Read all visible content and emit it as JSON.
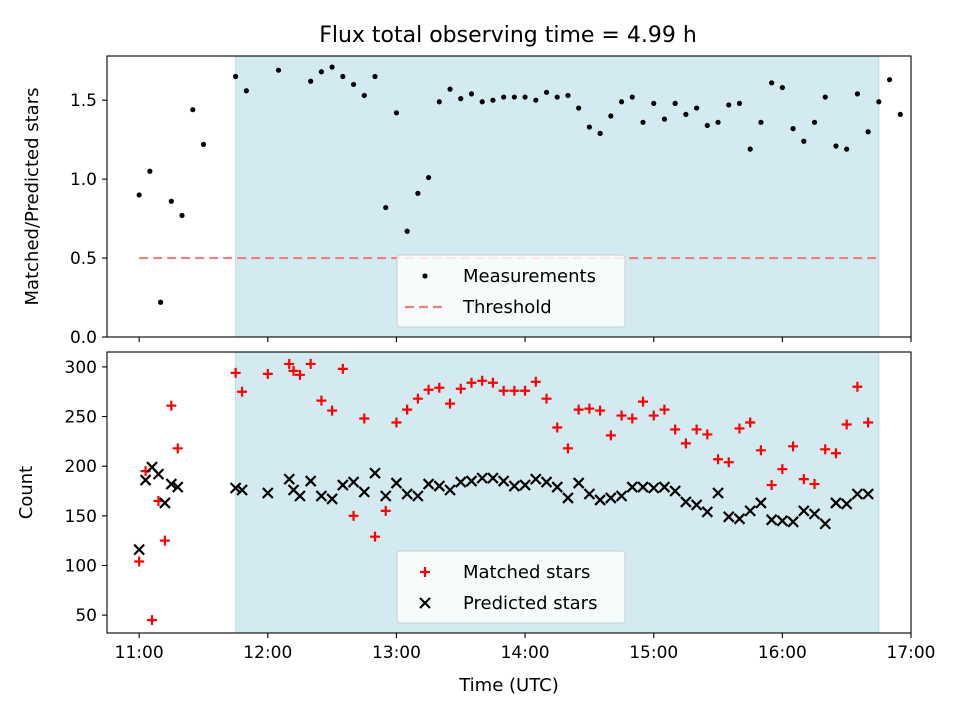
{
  "chart_data": [
    {
      "type": "scatter",
      "title": "Flux total observing time = 4.99 h",
      "xlabel": "",
      "ylabel": "Matched/Predicted stars",
      "xlim": [
        "10:45",
        "17:00"
      ],
      "ylim": [
        0,
        1.78
      ],
      "x_ticks": [
        "11:00",
        "12:00",
        "13:00",
        "14:00",
        "15:00",
        "16:00",
        "17:00"
      ],
      "x_tick_labels_shown": false,
      "y_ticks": [
        0.0,
        0.5,
        1.0,
        1.5
      ],
      "y_tick_labels": [
        "0.0",
        "0.5",
        "1.0",
        "1.5"
      ],
      "shaded_interval": {
        "start": "11:45",
        "end": "16:45",
        "color": "#d3eaf0"
      },
      "legend": {
        "placement": "lower center",
        "entries": [
          "Measurements",
          "Threshold"
        ]
      },
      "series": [
        {
          "name": "Measurements",
          "marker": "dot",
          "color": "#000000",
          "points": [
            [
              "11:00",
              0.9
            ],
            [
              "11:05",
              1.05
            ],
            [
              "11:10",
              0.22
            ],
            [
              "11:15",
              0.86
            ],
            [
              "11:20",
              0.77
            ],
            [
              "11:25",
              1.44
            ],
            [
              "11:30",
              1.22
            ],
            [
              "11:45",
              1.65
            ],
            [
              "11:50",
              1.56
            ],
            [
              "12:05",
              1.69
            ],
            [
              "12:20",
              1.62
            ],
            [
              "12:25",
              1.68
            ],
            [
              "12:30",
              1.71
            ],
            [
              "12:35",
              1.65
            ],
            [
              "12:40",
              1.6
            ],
            [
              "12:45",
              1.53
            ],
            [
              "12:50",
              1.65
            ],
            [
              "12:55",
              0.82
            ],
            [
              "13:00",
              1.42
            ],
            [
              "13:05",
              0.67
            ],
            [
              "13:10",
              0.91
            ],
            [
              "13:15",
              1.01
            ],
            [
              "13:20",
              1.49
            ],
            [
              "13:25",
              1.57
            ],
            [
              "13:30",
              1.51
            ],
            [
              "13:35",
              1.54
            ],
            [
              "13:40",
              1.49
            ],
            [
              "13:45",
              1.5
            ],
            [
              "13:50",
              1.52
            ],
            [
              "13:55",
              1.52
            ],
            [
              "14:00",
              1.52
            ],
            [
              "14:05",
              1.5
            ],
            [
              "14:10",
              1.55
            ],
            [
              "14:15",
              1.52
            ],
            [
              "14:20",
              1.53
            ],
            [
              "14:25",
              1.45
            ],
            [
              "14:30",
              1.33
            ],
            [
              "14:35",
              1.29
            ],
            [
              "14:40",
              1.4
            ],
            [
              "14:45",
              1.49
            ],
            [
              "14:50",
              1.52
            ],
            [
              "14:55",
              1.36
            ],
            [
              "15:00",
              1.48
            ],
            [
              "15:05",
              1.38
            ],
            [
              "15:10",
              1.48
            ],
            [
              "15:15",
              1.41
            ],
            [
              "15:20",
              1.45
            ],
            [
              "15:25",
              1.34
            ],
            [
              "15:30",
              1.36
            ],
            [
              "15:35",
              1.47
            ],
            [
              "15:40",
              1.48
            ],
            [
              "15:45",
              1.19
            ],
            [
              "15:50",
              1.36
            ],
            [
              "15:55",
              1.61
            ],
            [
              "16:00",
              1.58
            ],
            [
              "16:05",
              1.32
            ],
            [
              "16:10",
              1.24
            ],
            [
              "16:15",
              1.36
            ],
            [
              "16:20",
              1.52
            ],
            [
              "16:25",
              1.21
            ],
            [
              "16:30",
              1.19
            ],
            [
              "16:35",
              1.54
            ],
            [
              "16:40",
              1.3
            ],
            [
              "16:45",
              1.49
            ],
            [
              "16:50",
              1.63
            ],
            [
              "16:55",
              1.41
            ]
          ]
        },
        {
          "name": "Threshold",
          "style": "dashed-line",
          "color": "#f08080",
          "points": [
            [
              "11:00",
              0.5
            ],
            [
              "16:45",
              0.5
            ]
          ]
        }
      ]
    },
    {
      "type": "scatter",
      "title": "",
      "xlabel": "Time (UTC)",
      "ylabel": "Count",
      "xlim": [
        "10:45",
        "17:00"
      ],
      "ylim": [
        32,
        315
      ],
      "x_ticks": [
        "11:00",
        "12:00",
        "13:00",
        "14:00",
        "15:00",
        "16:00",
        "17:00"
      ],
      "x_tick_labels_shown": true,
      "y_ticks": [
        50,
        100,
        150,
        200,
        250,
        300
      ],
      "y_tick_labels": [
        "50",
        "100",
        "150",
        "200",
        "250",
        "300"
      ],
      "shaded_interval": {
        "start": "11:45",
        "end": "16:45",
        "color": "#d3eaf0"
      },
      "legend": {
        "placement": "lower center",
        "entries": [
          "Matched stars",
          "Predicted stars"
        ]
      },
      "series": [
        {
          "name": "Matched stars",
          "marker": "plus",
          "color": "#ff0000",
          "points": [
            [
              "11:00",
              104
            ],
            [
              "11:03",
              195
            ],
            [
              "11:06",
              45
            ],
            [
              "11:09",
              165
            ],
            [
              "11:12",
              125
            ],
            [
              "11:15",
              261
            ],
            [
              "11:18",
              218
            ],
            [
              "11:45",
              294
            ],
            [
              "11:48",
              275
            ],
            [
              "12:00",
              293
            ],
            [
              "12:10",
              303
            ],
            [
              "12:12",
              296
            ],
            [
              "12:15",
              292
            ],
            [
              "12:20",
              303
            ],
            [
              "12:25",
              266
            ],
            [
              "12:30",
              256
            ],
            [
              "12:35",
              298
            ],
            [
              "12:40",
              150
            ],
            [
              "12:45",
              248
            ],
            [
              "12:50",
              129
            ],
            [
              "12:55",
              155
            ],
            [
              "13:00",
              244
            ],
            [
              "13:05",
              257
            ],
            [
              "13:10",
              268
            ],
            [
              "13:15",
              277
            ],
            [
              "13:20",
              279
            ],
            [
              "13:25",
              263
            ],
            [
              "13:30",
              278
            ],
            [
              "13:35",
              284
            ],
            [
              "13:40",
              286
            ],
            [
              "13:45",
              284
            ],
            [
              "13:50",
              276
            ],
            [
              "13:55",
              276
            ],
            [
              "14:00",
              276
            ],
            [
              "14:05",
              285
            ],
            [
              "14:10",
              268
            ],
            [
              "14:15",
              239
            ],
            [
              "14:20",
              218
            ],
            [
              "14:25",
              257
            ],
            [
              "14:30",
              258
            ],
            [
              "14:35",
              256
            ],
            [
              "14:40",
              231
            ],
            [
              "14:45",
              251
            ],
            [
              "14:50",
              248
            ],
            [
              "14:55",
              265
            ],
            [
              "15:00",
              251
            ],
            [
              "15:05",
              257
            ],
            [
              "15:10",
              237
            ],
            [
              "15:15",
              223
            ],
            [
              "15:20",
              237
            ],
            [
              "15:25",
              232
            ],
            [
              "15:30",
              207
            ],
            [
              "15:35",
              204
            ],
            [
              "15:40",
              238
            ],
            [
              "15:45",
              244
            ],
            [
              "15:50",
              216
            ],
            [
              "15:55",
              181
            ],
            [
              "16:00",
              197
            ],
            [
              "16:05",
              220
            ],
            [
              "16:10",
              187
            ],
            [
              "16:15",
              182
            ],
            [
              "16:20",
              217
            ],
            [
              "16:25",
              213
            ],
            [
              "16:30",
              242
            ],
            [
              "16:35",
              280
            ],
            [
              "16:40",
              244
            ]
          ]
        },
        {
          "name": "Predicted stars",
          "marker": "x",
          "color": "#000000",
          "points": [
            [
              "11:00",
              116
            ],
            [
              "11:03",
              186
            ],
            [
              "11:06",
              199
            ],
            [
              "11:09",
              192
            ],
            [
              "11:12",
              163
            ],
            [
              "11:15",
              182
            ],
            [
              "11:18",
              179
            ],
            [
              "11:45",
              178
            ],
            [
              "11:48",
              176
            ],
            [
              "12:00",
              173
            ],
            [
              "12:10",
              187
            ],
            [
              "12:12",
              176
            ],
            [
              "12:15",
              170
            ],
            [
              "12:20",
              185
            ],
            [
              "12:25",
              170
            ],
            [
              "12:30",
              167
            ],
            [
              "12:35",
              181
            ],
            [
              "12:40",
              184
            ],
            [
              "12:45",
              174
            ],
            [
              "12:50",
              193
            ],
            [
              "12:55",
              170
            ],
            [
              "13:00",
              183
            ],
            [
              "13:05",
              172
            ],
            [
              "13:10",
              170
            ],
            [
              "13:15",
              182
            ],
            [
              "13:20",
              180
            ],
            [
              "13:25",
              176
            ],
            [
              "13:30",
              184
            ],
            [
              "13:35",
              185
            ],
            [
              "13:40",
              188
            ],
            [
              "13:45",
              188
            ],
            [
              "13:50",
              185
            ],
            [
              "13:55",
              180
            ],
            [
              "14:00",
              181
            ],
            [
              "14:05",
              187
            ],
            [
              "14:10",
              184
            ],
            [
              "14:15",
              179
            ],
            [
              "14:20",
              168
            ],
            [
              "14:25",
              183
            ],
            [
              "14:30",
              172
            ],
            [
              "14:35",
              166
            ],
            [
              "14:40",
              168
            ],
            [
              "14:45",
              170
            ],
            [
              "14:50",
              179
            ],
            [
              "14:55",
              179
            ],
            [
              "15:00",
              178
            ],
            [
              "15:05",
              179
            ],
            [
              "15:10",
              175
            ],
            [
              "15:15",
              164
            ],
            [
              "15:20",
              161
            ],
            [
              "15:25",
              154
            ],
            [
              "15:30",
              173
            ],
            [
              "15:35",
              149
            ],
            [
              "15:40",
              147
            ],
            [
              "15:45",
              155
            ],
            [
              "15:50",
              163
            ],
            [
              "15:55",
              146
            ],
            [
              "16:00",
              145
            ],
            [
              "16:05",
              144
            ],
            [
              "16:10",
              155
            ],
            [
              "16:15",
              152
            ],
            [
              "16:20",
              142
            ],
            [
              "16:25",
              163
            ],
            [
              "16:30",
              162
            ],
            [
              "16:35",
              172
            ],
            [
              "16:40",
              172
            ]
          ]
        }
      ]
    }
  ]
}
